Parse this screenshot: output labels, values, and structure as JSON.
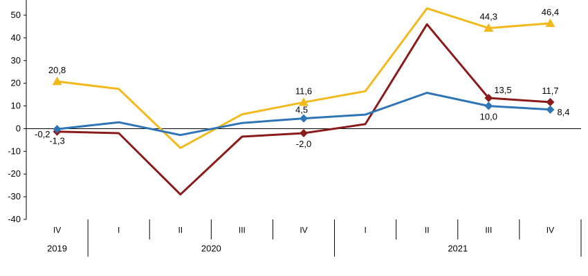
{
  "chart_data": {
    "type": "line",
    "categories": [
      "IV",
      "I",
      "II",
      "III",
      "IV",
      "I",
      "II",
      "III",
      "IV"
    ],
    "year_groups": [
      {
        "label": "2019",
        "start": 0,
        "end": 0
      },
      {
        "label": "2020",
        "start": 1,
        "end": 4
      },
      {
        "label": "2021",
        "start": 5,
        "end": 8
      }
    ],
    "ylim": [
      -40,
      50
    ],
    "yticks": [
      -40,
      -30,
      -20,
      -10,
      0,
      10,
      20,
      30,
      40,
      50
    ],
    "grid": false,
    "series": [
      {
        "color": "#F2B91D",
        "marker": "triangle",
        "values": [
          20.8,
          17.5,
          -8.5,
          6.3,
          11.6,
          16.5,
          53.0,
          44.3,
          46.4
        ],
        "labels": [
          {
            "index": 0,
            "text": "20,8"
          },
          {
            "index": 4,
            "text": "11,6"
          },
          {
            "index": 7,
            "text": "44,3"
          },
          {
            "index": 8,
            "text": "46,4"
          }
        ]
      },
      {
        "color": "#8B1A1A",
        "marker": "diamond",
        "values": [
          -1.3,
          -2.0,
          -29.0,
          -3.5,
          -2.0,
          2.0,
          46.0,
          13.5,
          11.7
        ],
        "labels": [
          {
            "index": 0,
            "text": "-1,3"
          },
          {
            "index": 4,
            "text": "-2,0"
          },
          {
            "index": 7,
            "text": "13,5"
          },
          {
            "index": 8,
            "text": "11,7"
          }
        ]
      },
      {
        "color": "#2E75B6",
        "marker": "diamond",
        "values": [
          -0.2,
          2.8,
          -2.8,
          2.5,
          4.5,
          6.2,
          15.8,
          10.0,
          8.4
        ],
        "labels": [
          {
            "index": 0,
            "text": "-0,2"
          },
          {
            "index": 4,
            "text": "4,5"
          },
          {
            "index": 7,
            "text": "10,0"
          },
          {
            "index": 8,
            "text": "8,4"
          }
        ]
      }
    ]
  }
}
